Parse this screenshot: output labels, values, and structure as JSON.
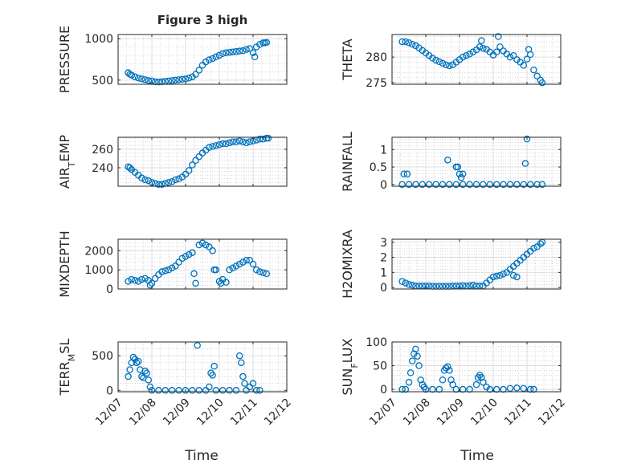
{
  "figure": {
    "title": "Figure 3 high",
    "xlabel": "Time",
    "x_ticks": [
      "12/07",
      "12/08",
      "12/09",
      "12/10",
      "12/11",
      "12/12"
    ],
    "marker_color": "#0072BD",
    "axis_color": "#262626",
    "grid_color": "#b4b4b4"
  },
  "chart_data": [
    {
      "type": "scatter",
      "name": "pressure",
      "ylabel": "PRESSURE",
      "xlim": [
        "12/07",
        "12/12"
      ],
      "ylim": [
        450,
        1050
      ],
      "yticks": [
        500,
        1000
      ],
      "grid": true,
      "x": [
        "12/07",
        "12/08",
        "12/09",
        "12/10",
        "12/11"
      ],
      "points": [
        [
          0.3,
          590
        ],
        [
          0.35,
          570
        ],
        [
          0.4,
          560
        ],
        [
          0.5,
          540
        ],
        [
          0.6,
          525
        ],
        [
          0.7,
          515
        ],
        [
          0.8,
          505
        ],
        [
          0.9,
          495
        ],
        [
          1.0,
          490
        ],
        [
          1.1,
          480
        ],
        [
          1.2,
          478
        ],
        [
          1.3,
          480
        ],
        [
          1.4,
          485
        ],
        [
          1.5,
          490
        ],
        [
          1.6,
          495
        ],
        [
          1.7,
          500
        ],
        [
          1.8,
          505
        ],
        [
          1.9,
          510
        ],
        [
          2.0,
          515
        ],
        [
          2.1,
          525
        ],
        [
          2.2,
          540
        ],
        [
          2.3,
          570
        ],
        [
          2.4,
          620
        ],
        [
          2.5,
          680
        ],
        [
          2.6,
          720
        ],
        [
          2.7,
          745
        ],
        [
          2.8,
          760
        ],
        [
          2.9,
          780
        ],
        [
          3.0,
          800
        ],
        [
          3.1,
          820
        ],
        [
          3.2,
          830
        ],
        [
          3.3,
          835
        ],
        [
          3.4,
          840
        ],
        [
          3.5,
          845
        ],
        [
          3.6,
          850
        ],
        [
          3.7,
          855
        ],
        [
          3.8,
          870
        ],
        [
          3.9,
          880
        ],
        [
          4.0,
          830
        ],
        [
          4.05,
          780
        ],
        [
          4.1,
          900
        ],
        [
          4.2,
          930
        ],
        [
          4.3,
          950
        ],
        [
          4.35,
          950
        ],
        [
          4.4,
          955
        ]
      ]
    },
    {
      "type": "scatter",
      "name": "theta",
      "ylabel": "THETA",
      "xlim": [
        "12/07",
        "12/12"
      ],
      "ylim": [
        274.7,
        284.4
      ],
      "yticks": [
        275,
        280
      ],
      "grid": true,
      "points": [
        [
          0.3,
          283
        ],
        [
          0.4,
          283
        ],
        [
          0.5,
          282.8
        ],
        [
          0.6,
          282.5
        ],
        [
          0.7,
          282.2
        ],
        [
          0.8,
          281.8
        ],
        [
          0.9,
          281.3
        ],
        [
          1.0,
          280.8
        ],
        [
          1.1,
          280.3
        ],
        [
          1.2,
          279.8
        ],
        [
          1.3,
          279.4
        ],
        [
          1.4,
          279.1
        ],
        [
          1.5,
          278.8
        ],
        [
          1.6,
          278.5
        ],
        [
          1.7,
          278.3
        ],
        [
          1.8,
          278.5
        ],
        [
          1.9,
          279
        ],
        [
          2.0,
          279.5
        ],
        [
          2.1,
          280
        ],
        [
          2.2,
          280.3
        ],
        [
          2.3,
          280.6
        ],
        [
          2.4,
          281
        ],
        [
          2.5,
          281.4
        ],
        [
          2.6,
          282
        ],
        [
          2.65,
          283.2
        ],
        [
          2.7,
          281.7
        ],
        [
          2.8,
          281.5
        ],
        [
          2.9,
          281
        ],
        [
          3.0,
          280.4
        ],
        [
          3.1,
          281
        ],
        [
          3.15,
          284
        ],
        [
          3.2,
          282
        ],
        [
          3.3,
          281.2
        ],
        [
          3.4,
          280.6
        ],
        [
          3.5,
          280
        ],
        [
          3.6,
          280.3
        ],
        [
          3.7,
          279.5
        ],
        [
          3.8,
          279
        ],
        [
          3.9,
          278.4
        ],
        [
          4.0,
          279.6
        ],
        [
          4.05,
          281.5
        ],
        [
          4.1,
          280.5
        ],
        [
          4.2,
          277.5
        ],
        [
          4.3,
          276.3
        ],
        [
          4.4,
          275.5
        ],
        [
          4.45,
          275
        ]
      ]
    },
    {
      "type": "scatter",
      "name": "air-temp",
      "ylabel": "AIR_TEMP",
      "xlim": [
        "12/07",
        "12/12"
      ],
      "ylim": [
        220,
        273
      ],
      "yticks": [
        240,
        260
      ],
      "grid": true,
      "points": [
        [
          0.3,
          241
        ],
        [
          0.35,
          240
        ],
        [
          0.4,
          238
        ],
        [
          0.5,
          235
        ],
        [
          0.6,
          232
        ],
        [
          0.7,
          229
        ],
        [
          0.8,
          227
        ],
        [
          0.9,
          226
        ],
        [
          1.0,
          224
        ],
        [
          1.1,
          223
        ],
        [
          1.2,
          222
        ],
        [
          1.3,
          222
        ],
        [
          1.4,
          223
        ],
        [
          1.5,
          224
        ],
        [
          1.6,
          225
        ],
        [
          1.7,
          227
        ],
        [
          1.8,
          228
        ],
        [
          1.9,
          230
        ],
        [
          2.0,
          233
        ],
        [
          2.1,
          237
        ],
        [
          2.2,
          243
        ],
        [
          2.3,
          248
        ],
        [
          2.4,
          252
        ],
        [
          2.5,
          256
        ],
        [
          2.6,
          259
        ],
        [
          2.7,
          262
        ],
        [
          2.8,
          263
        ],
        [
          2.9,
          264
        ],
        [
          3.0,
          265
        ],
        [
          3.1,
          266
        ],
        [
          3.2,
          266
        ],
        [
          3.3,
          267
        ],
        [
          3.4,
          268
        ],
        [
          3.5,
          268
        ],
        [
          3.6,
          269
        ],
        [
          3.7,
          268
        ],
        [
          3.8,
          267
        ],
        [
          3.9,
          268
        ],
        [
          4.0,
          269
        ],
        [
          4.1,
          270
        ],
        [
          4.2,
          271
        ],
        [
          4.3,
          271
        ],
        [
          4.4,
          272
        ],
        [
          4.45,
          272
        ]
      ]
    },
    {
      "type": "scatter",
      "name": "rainfall",
      "ylabel": "RAINFALL",
      "xlim": [
        "12/07",
        "12/12"
      ],
      "ylim": [
        -0.05,
        1.35
      ],
      "yticks": [
        0,
        0.5,
        1
      ],
      "grid": true,
      "points": [
        [
          0.3,
          0
        ],
        [
          0.5,
          0
        ],
        [
          0.7,
          0
        ],
        [
          0.9,
          0
        ],
        [
          1.1,
          0
        ],
        [
          1.3,
          0
        ],
        [
          1.5,
          0
        ],
        [
          1.7,
          0
        ],
        [
          1.9,
          0
        ],
        [
          2.1,
          0
        ],
        [
          2.3,
          0
        ],
        [
          2.5,
          0
        ],
        [
          2.7,
          0
        ],
        [
          2.9,
          0
        ],
        [
          3.1,
          0
        ],
        [
          3.3,
          0
        ],
        [
          3.5,
          0
        ],
        [
          3.7,
          0
        ],
        [
          3.9,
          0
        ],
        [
          4.1,
          0
        ],
        [
          4.3,
          0
        ],
        [
          4.45,
          0
        ],
        [
          0.35,
          0.3
        ],
        [
          0.45,
          0.3
        ],
        [
          1.65,
          0.7
        ],
        [
          1.9,
          0.5
        ],
        [
          1.95,
          0.5
        ],
        [
          2.0,
          0.3
        ],
        [
          2.1,
          0.3
        ],
        [
          2.05,
          0.2
        ],
        [
          3.95,
          0.6
        ],
        [
          4.0,
          1.3
        ]
      ]
    },
    {
      "type": "scatter",
      "name": "mixdepth",
      "ylabel": "MIXDEPTH",
      "xlim": [
        "12/07",
        "12/12"
      ],
      "ylim": [
        0,
        2600
      ],
      "yticks": [
        0,
        1000,
        2000
      ],
      "grid": true,
      "points": [
        [
          0.3,
          400
        ],
        [
          0.4,
          500
        ],
        [
          0.5,
          450
        ],
        [
          0.6,
          400
        ],
        [
          0.7,
          500
        ],
        [
          0.8,
          550
        ],
        [
          0.9,
          450
        ],
        [
          0.95,
          200
        ],
        [
          1.0,
          300
        ],
        [
          1.1,
          550
        ],
        [
          1.2,
          750
        ],
        [
          1.3,
          900
        ],
        [
          1.4,
          950
        ],
        [
          1.5,
          1000
        ],
        [
          1.6,
          1100
        ],
        [
          1.7,
          1200
        ],
        [
          1.8,
          1400
        ],
        [
          1.9,
          1600
        ],
        [
          2.0,
          1700
        ],
        [
          2.1,
          1800
        ],
        [
          2.2,
          1900
        ],
        [
          2.25,
          800
        ],
        [
          2.3,
          300
        ],
        [
          2.4,
          2300
        ],
        [
          2.5,
          2400
        ],
        [
          2.6,
          2300
        ],
        [
          2.7,
          2200
        ],
        [
          2.8,
          2000
        ],
        [
          2.85,
          1000
        ],
        [
          2.9,
          1000
        ],
        [
          3.0,
          400
        ],
        [
          3.05,
          300
        ],
        [
          3.1,
          500
        ],
        [
          3.2,
          350
        ],
        [
          3.3,
          1000
        ],
        [
          3.4,
          1100
        ],
        [
          3.5,
          1200
        ],
        [
          3.6,
          1300
        ],
        [
          3.7,
          1400
        ],
        [
          3.8,
          1500
        ],
        [
          3.9,
          1500
        ],
        [
          4.0,
          1300
        ],
        [
          4.1,
          1000
        ],
        [
          4.2,
          900
        ],
        [
          4.3,
          850
        ],
        [
          4.4,
          800
        ]
      ]
    },
    {
      "type": "scatter",
      "name": "h2omixra",
      "ylabel": "H2OMIXRA",
      "xlim": [
        "12/07",
        "12/12"
      ],
      "ylim": [
        -0.1,
        3.2
      ],
      "yticks": [
        0,
        1,
        2,
        3
      ],
      "grid": true,
      "points": [
        [
          0.3,
          0.4
        ],
        [
          0.4,
          0.3
        ],
        [
          0.5,
          0.2
        ],
        [
          0.6,
          0.15
        ],
        [
          0.7,
          0.1
        ],
        [
          0.8,
          0.1
        ],
        [
          0.9,
          0.1
        ],
        [
          1.0,
          0.1
        ],
        [
          1.1,
          0.1
        ],
        [
          1.2,
          0.08
        ],
        [
          1.3,
          0.08
        ],
        [
          1.4,
          0.08
        ],
        [
          1.5,
          0.08
        ],
        [
          1.6,
          0.08
        ],
        [
          1.7,
          0.08
        ],
        [
          1.8,
          0.1
        ],
        [
          1.9,
          0.1
        ],
        [
          2.0,
          0.1
        ],
        [
          2.1,
          0.12
        ],
        [
          2.2,
          0.1
        ],
        [
          2.3,
          0.12
        ],
        [
          2.4,
          0.15
        ],
        [
          2.5,
          0.1
        ],
        [
          2.6,
          0.1
        ],
        [
          2.7,
          0.1
        ],
        [
          2.8,
          0.3
        ],
        [
          2.9,
          0.5
        ],
        [
          3.0,
          0.7
        ],
        [
          3.1,
          0.75
        ],
        [
          3.2,
          0.8
        ],
        [
          3.3,
          0.9
        ],
        [
          3.4,
          1.0
        ],
        [
          3.5,
          1.2
        ],
        [
          3.6,
          1.4
        ],
        [
          3.7,
          1.6
        ],
        [
          3.8,
          1.8
        ],
        [
          3.9,
          2.0
        ],
        [
          4.0,
          2.2
        ],
        [
          4.1,
          2.4
        ],
        [
          4.2,
          2.6
        ],
        [
          4.3,
          2.7
        ],
        [
          4.4,
          2.9
        ],
        [
          4.45,
          3.0
        ],
        [
          3.6,
          0.8
        ],
        [
          3.7,
          0.7
        ]
      ]
    },
    {
      "type": "scatter",
      "name": "terr-msl",
      "ylabel": "TERR_MSL",
      "xlim": [
        "12/07",
        "12/12"
      ],
      "ylim": [
        -20,
        700
      ],
      "yticks": [
        0,
        500
      ],
      "grid": true,
      "points": [
        [
          0.3,
          200
        ],
        [
          0.35,
          300
        ],
        [
          0.4,
          400
        ],
        [
          0.45,
          480
        ],
        [
          0.5,
          450
        ],
        [
          0.55,
          400
        ],
        [
          0.6,
          420
        ],
        [
          0.65,
          300
        ],
        [
          0.7,
          200
        ],
        [
          0.75,
          180
        ],
        [
          0.8,
          280
        ],
        [
          0.85,
          250
        ],
        [
          0.9,
          150
        ],
        [
          0.95,
          50
        ],
        [
          1.0,
          0
        ],
        [
          1.2,
          0
        ],
        [
          1.4,
          0
        ],
        [
          1.6,
          0
        ],
        [
          1.8,
          0
        ],
        [
          2.0,
          0
        ],
        [
          2.2,
          0
        ],
        [
          2.4,
          0
        ],
        [
          2.35,
          650
        ],
        [
          2.6,
          0
        ],
        [
          2.7,
          50
        ],
        [
          2.75,
          250
        ],
        [
          2.8,
          220
        ],
        [
          2.85,
          350
        ],
        [
          2.9,
          0
        ],
        [
          3.1,
          0
        ],
        [
          3.3,
          0
        ],
        [
          3.5,
          0
        ],
        [
          3.6,
          500
        ],
        [
          3.65,
          400
        ],
        [
          3.7,
          200
        ],
        [
          3.75,
          100
        ],
        [
          3.8,
          0
        ],
        [
          3.9,
          50
        ],
        [
          4.0,
          100
        ],
        [
          4.1,
          0
        ],
        [
          4.2,
          0
        ]
      ]
    },
    {
      "type": "scatter",
      "name": "sun-flux",
      "ylabel": "SUN_FLUX",
      "xlim": [
        "12/07",
        "12/12"
      ],
      "ylim": [
        -5,
        100
      ],
      "yticks": [
        0,
        50,
        100
      ],
      "grid": true,
      "points": [
        [
          0.3,
          0
        ],
        [
          0.4,
          0
        ],
        [
          0.5,
          15
        ],
        [
          0.55,
          35
        ],
        [
          0.6,
          60
        ],
        [
          0.65,
          75
        ],
        [
          0.7,
          85
        ],
        [
          0.75,
          70
        ],
        [
          0.8,
          50
        ],
        [
          0.85,
          20
        ],
        [
          0.9,
          10
        ],
        [
          0.95,
          5
        ],
        [
          1.0,
          0
        ],
        [
          1.2,
          0
        ],
        [
          1.4,
          0
        ],
        [
          1.5,
          20
        ],
        [
          1.55,
          40
        ],
        [
          1.6,
          45
        ],
        [
          1.65,
          48
        ],
        [
          1.7,
          40
        ],
        [
          1.75,
          20
        ],
        [
          1.8,
          10
        ],
        [
          1.9,
          0
        ],
        [
          2.1,
          0
        ],
        [
          2.3,
          0
        ],
        [
          2.5,
          10
        ],
        [
          2.55,
          25
        ],
        [
          2.6,
          30
        ],
        [
          2.65,
          25
        ],
        [
          2.7,
          15
        ],
        [
          2.8,
          5
        ],
        [
          2.9,
          0
        ],
        [
          3.1,
          0
        ],
        [
          3.3,
          0
        ],
        [
          3.5,
          2
        ],
        [
          3.7,
          3
        ],
        [
          3.9,
          2
        ],
        [
          4.1,
          0
        ],
        [
          4.2,
          0
        ]
      ]
    }
  ]
}
